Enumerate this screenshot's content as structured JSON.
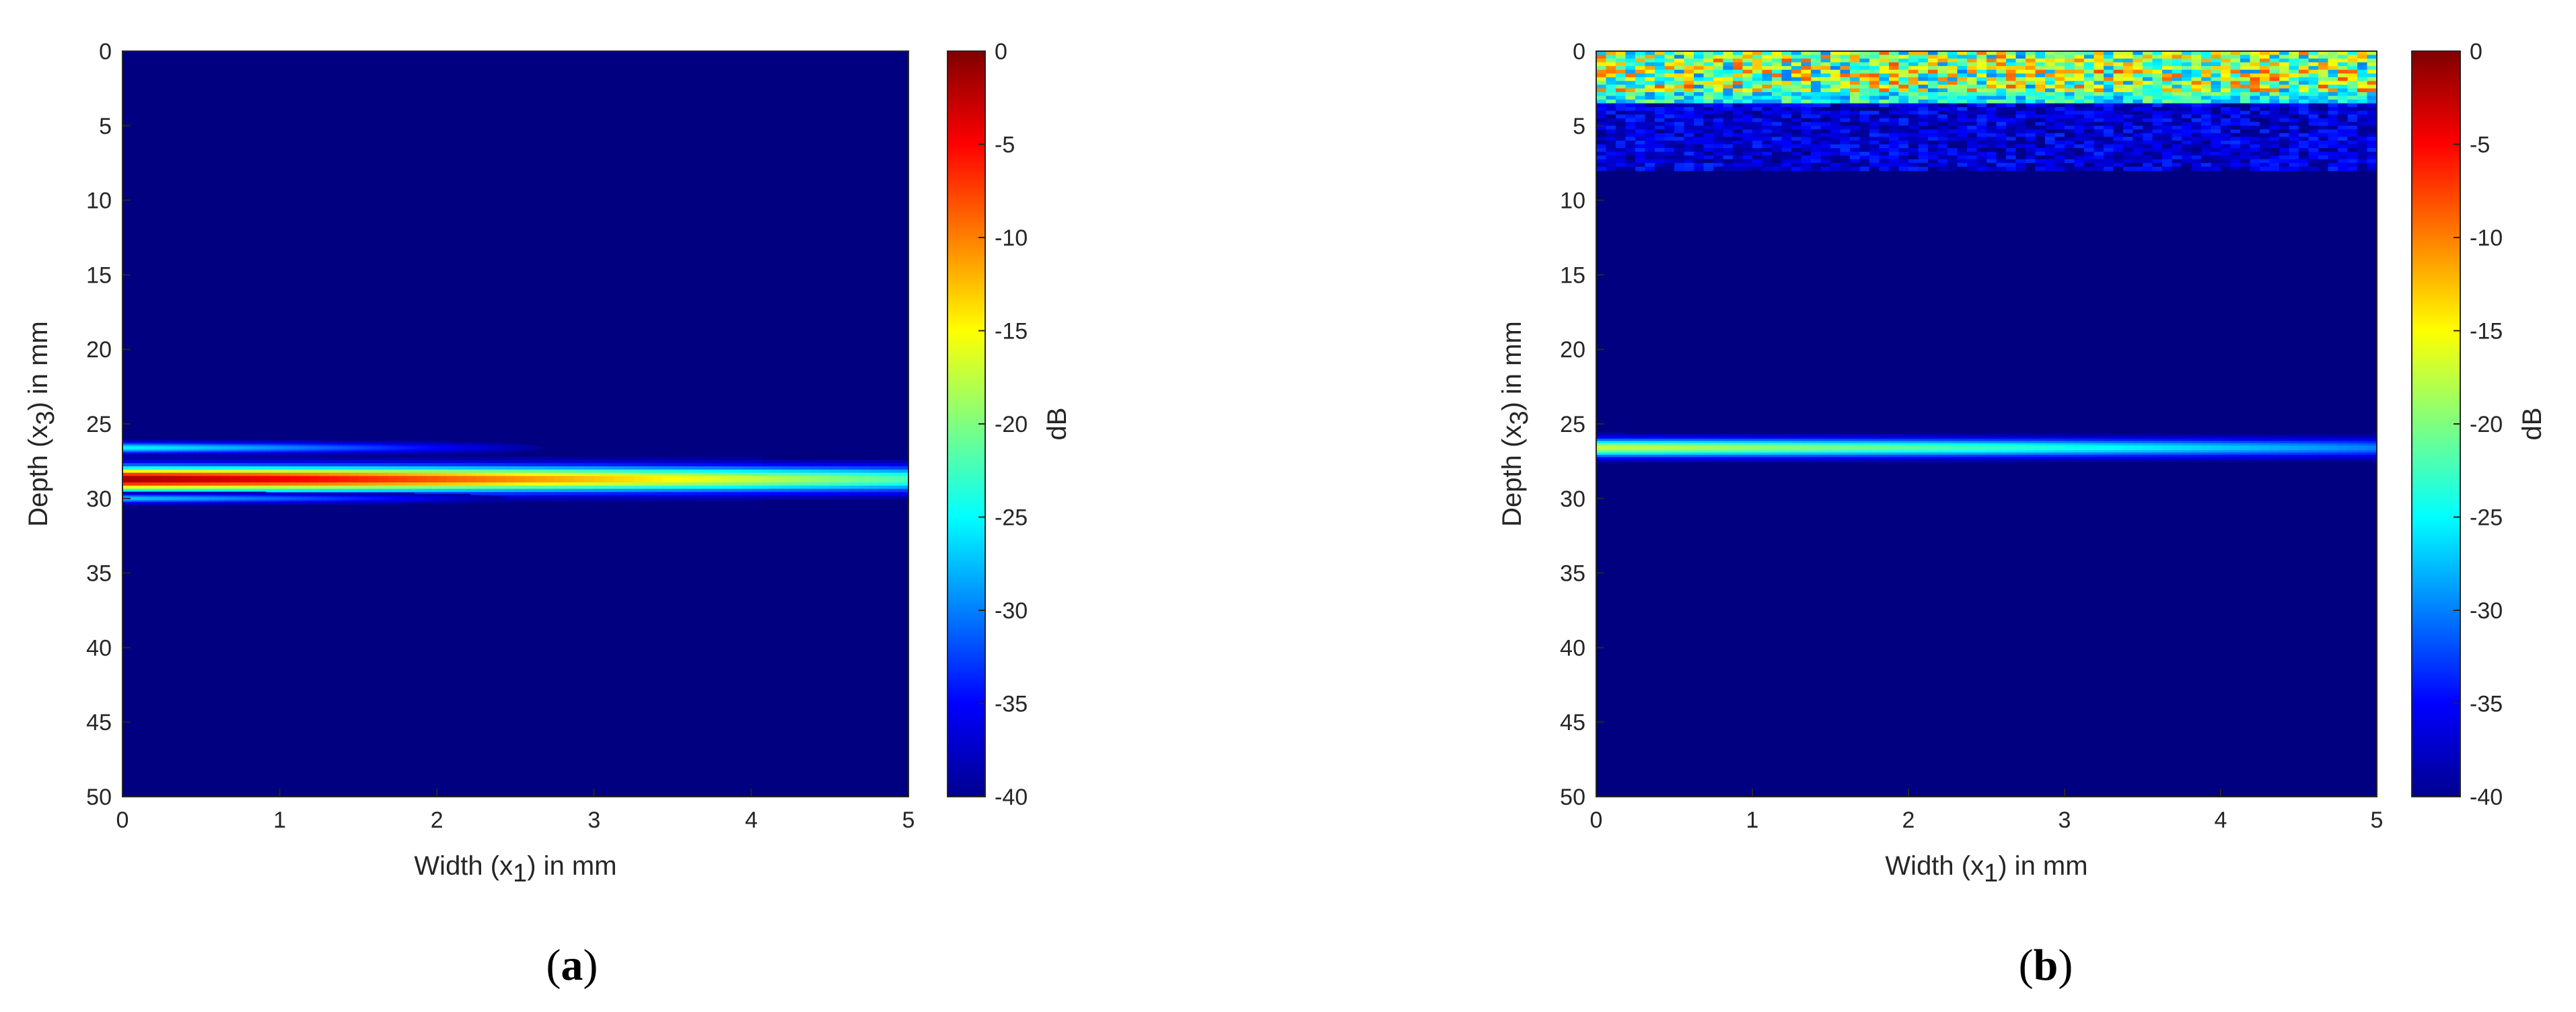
{
  "chart_data": [
    {
      "type": "heatmap",
      "panel_label": "a",
      "xlabel": {
        "pre": "Width (x",
        "sub": "1",
        "post": ") in mm"
      },
      "ylabel": {
        "pre": "Depth (x",
        "sub": "3",
        "post": ") in mm"
      },
      "xlim": [
        0,
        5
      ],
      "ylim": [
        50,
        0
      ],
      "x_ticks": [
        "0",
        "1",
        "2",
        "3",
        "4",
        "5"
      ],
      "y_ticks": [
        "0",
        "5",
        "10",
        "15",
        "20",
        "25",
        "30",
        "35",
        "40",
        "45",
        "50"
      ],
      "colorbar": {
        "label": "dB",
        "range": [
          -40,
          0
        ],
        "ticks": [
          "0",
          "-5",
          "-10",
          "-15",
          "-20",
          "-25",
          "-30",
          "-35",
          "-40"
        ],
        "colormap": "jet"
      },
      "background_db": -40,
      "features": [
        {
          "desc": "upper reflector",
          "depth_mm": 26.6,
          "x_start_mm": 0,
          "x_end_mm": 2.8,
          "peak_db": -25,
          "thickness_mm": 0.6
        },
        {
          "desc": "main reflector",
          "depth_mm": 28.7,
          "x_start_mm": 0,
          "x_end_mm": 5,
          "peak_db": -1,
          "thickness_mm": 1.4,
          "decays_to_db": -22
        },
        {
          "desc": "lower reflector",
          "depth_mm": 30.0,
          "x_start_mm": 0,
          "x_end_mm": 2.6,
          "peak_db": -27,
          "thickness_mm": 0.5
        }
      ]
    },
    {
      "type": "heatmap",
      "panel_label": "b",
      "xlabel": {
        "pre": "Width (x",
        "sub": "1",
        "post": ") in mm"
      },
      "ylabel": {
        "pre": "Depth (x",
        "sub": "3",
        "post": ") in mm"
      },
      "xlim": [
        0,
        5
      ],
      "ylim": [
        50,
        0
      ],
      "x_ticks": [
        "0",
        "1",
        "2",
        "3",
        "4",
        "5"
      ],
      "y_ticks": [
        "0",
        "5",
        "10",
        "15",
        "20",
        "25",
        "30",
        "35",
        "40",
        "45",
        "50"
      ],
      "colorbar": {
        "label": "dB",
        "range": [
          -40,
          0
        ],
        "ticks": [
          "0",
          "-5",
          "-10",
          "-15",
          "-20",
          "-25",
          "-30",
          "-35",
          "-40"
        ],
        "colormap": "jet"
      },
      "background_db": -40,
      "features": [
        {
          "desc": "near-surface noise band",
          "depth_start_mm": 0,
          "depth_end_mm": 3.5,
          "x_start_mm": 0,
          "x_end_mm": 5,
          "db_range": [
            -30,
            -8
          ]
        },
        {
          "desc": "faint scatter band",
          "depth_start_mm": 3.5,
          "depth_end_mm": 8,
          "x_start_mm": 0,
          "x_end_mm": 5,
          "db_range": [
            -40,
            -33
          ]
        },
        {
          "desc": "reflector",
          "depth_mm": 26.6,
          "x_start_mm": 0,
          "x_end_mm": 5,
          "peak_db": -17,
          "thickness_mm": 1.0,
          "decays_to_db": -30
        }
      ]
    }
  ]
}
